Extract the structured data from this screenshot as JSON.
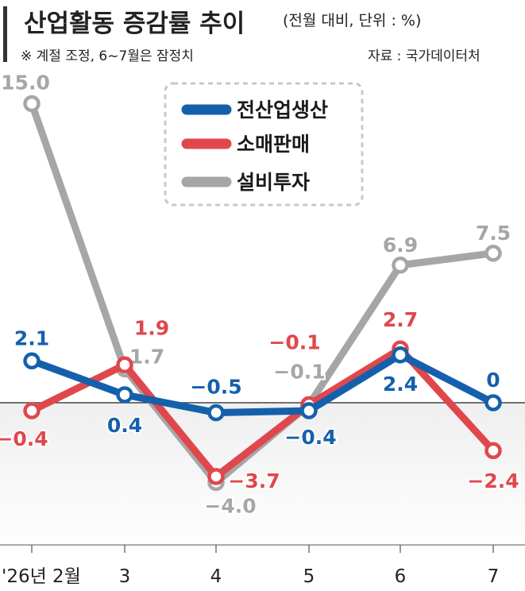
{
  "header": {
    "title": "산업활동 증감률 추이",
    "unit_note": "(전월 대비, 단위 : %)",
    "footnote": "※ 계절 조정, 6~7월은 잠정치",
    "source": "자료 : 국가데이터처"
  },
  "colors": {
    "production": "#1560ac",
    "retail": "#e0474c",
    "investment": "#a6a6a6",
    "text_dark": "#222222",
    "axis": "#444444",
    "negative_zone": "#efefef"
  },
  "chart_data": {
    "type": "line",
    "x": [
      "'26년 2월",
      "3",
      "4",
      "5",
      "6",
      "7"
    ],
    "series": [
      {
        "name": "설비투자",
        "key": "investment",
        "values": [
          15.0,
          1.7,
          -4.0,
          -0.1,
          6.9,
          7.5
        ],
        "labels": [
          "15.0",
          "1.7",
          "−4.0",
          "−0.1",
          "6.9",
          "7.5"
        ]
      },
      {
        "name": "소매판매",
        "key": "retail",
        "values": [
          -0.4,
          1.9,
          -3.7,
          -0.1,
          2.7,
          -2.4
        ],
        "labels": [
          "−0.4",
          "1.9",
          "−3.7",
          "−0.1",
          "2.7",
          "−2.4"
        ]
      },
      {
        "name": "전산업생산",
        "key": "production",
        "values": [
          2.1,
          0.4,
          -0.5,
          -0.4,
          2.4,
          0.0
        ],
        "labels": [
          "2.1",
          "0.4",
          "−0.5",
          "−0.4",
          "2.4",
          "0"
        ]
      }
    ],
    "legend_order": [
      "전산업생산",
      "소매판매",
      "설비투자"
    ],
    "legend_position": "top-center",
    "xlabel": "",
    "ylabel": "",
    "grid": false
  }
}
